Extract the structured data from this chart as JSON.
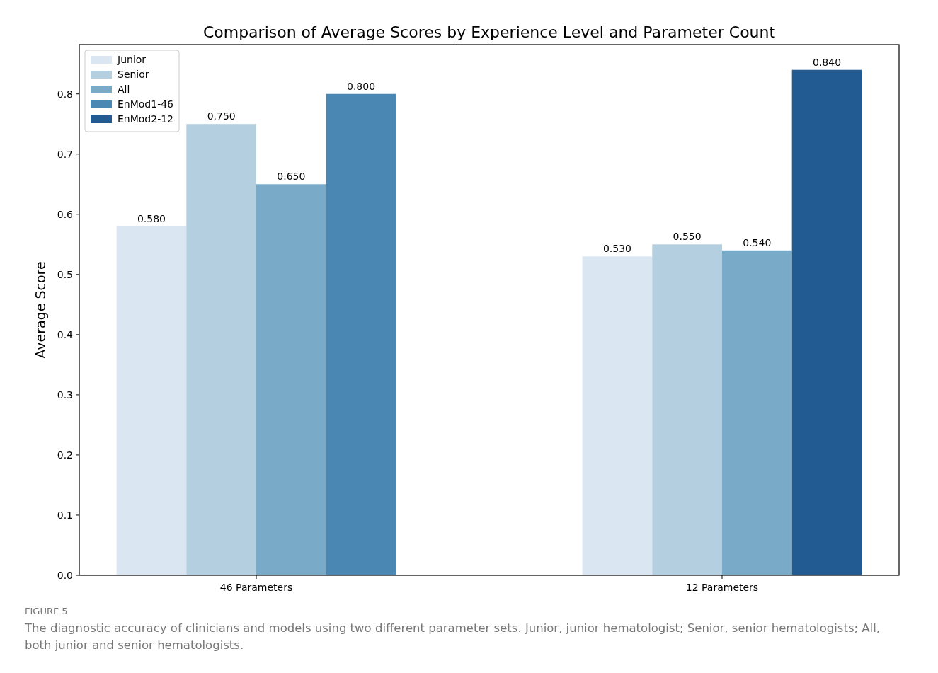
{
  "chart_data": {
    "type": "bar",
    "title": "Comparison of Average Scores by Experience Level and Parameter Count",
    "ylabel": "Average Score",
    "categories": [
      "46 Parameters",
      "12 Parameters"
    ],
    "series": [
      {
        "name": "Junior",
        "color": "#dae6f2",
        "values": [
          0.58,
          0.53
        ],
        "value_labels": [
          "0.580",
          "0.530"
        ]
      },
      {
        "name": "Senior",
        "color": "#b3cfe0",
        "values": [
          0.75,
          0.55
        ],
        "value_labels": [
          "0.750",
          "0.550"
        ]
      },
      {
        "name": "All",
        "color": "#79aac8",
        "values": [
          0.65,
          0.54
        ],
        "value_labels": [
          "0.650",
          "0.540"
        ]
      },
      {
        "name": "EnMod1-46",
        "color": "#4a87b3",
        "values": [
          0.8,
          null
        ],
        "value_labels": [
          "0.800",
          null
        ]
      },
      {
        "name": "EnMod2-12",
        "color": "#225b91",
        "values": [
          null,
          0.84
        ],
        "value_labels": [
          null,
          "0.840"
        ]
      }
    ],
    "ylim": [
      0,
      0.882
    ],
    "yticks": [
      {
        "value": 0,
        "label": "0.0"
      },
      0.1,
      0.2,
      0.3,
      0.4,
      0.5,
      0.6,
      0.7,
      0.8
    ],
    "grid": false,
    "legend": "top left",
    "annotations": [
      "FIGURE 5",
      "The diagnostic accuracy of clinicians and models using two different parameter sets. Junior, junior hematologist; Senior, senior hematologists; All, both junior and senior hematologists."
    ]
  }
}
